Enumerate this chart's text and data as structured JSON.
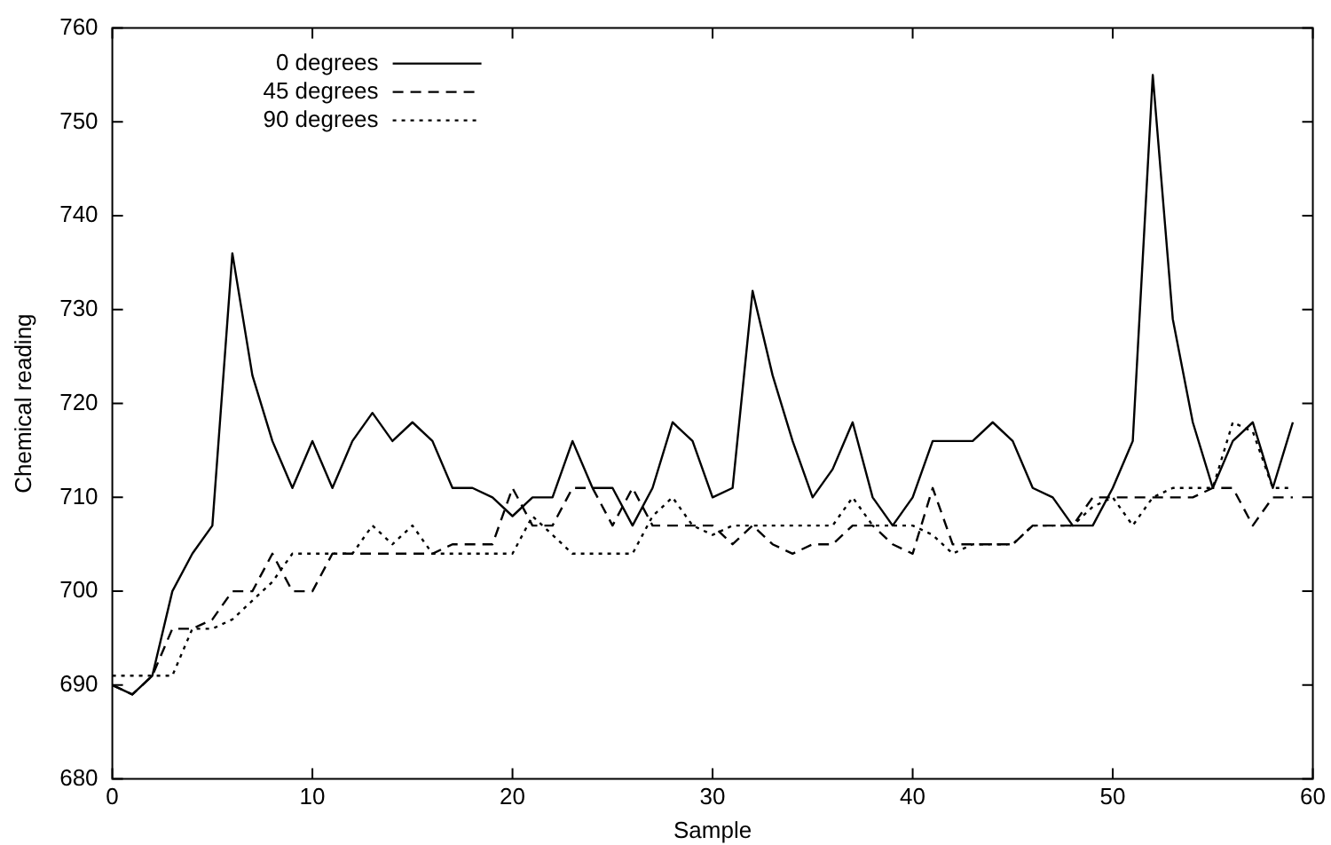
{
  "chart_data": {
    "type": "line",
    "xlabel": "Sample",
    "ylabel": "Chemical reading",
    "x": [
      0,
      1,
      2,
      3,
      4,
      5,
      6,
      7,
      8,
      9,
      10,
      11,
      12,
      13,
      14,
      15,
      16,
      17,
      18,
      19,
      20,
      21,
      22,
      23,
      24,
      25,
      26,
      27,
      28,
      29,
      30,
      31,
      32,
      33,
      34,
      35,
      36,
      37,
      38,
      39,
      40,
      41,
      42,
      43,
      44,
      45,
      46,
      47,
      48,
      49,
      50,
      51,
      52,
      53,
      54,
      55,
      56,
      57,
      58,
      59
    ],
    "series": [
      {
        "name": "0 degrees",
        "color": "#000000",
        "line_style": "solid",
        "values": [
          690,
          689,
          691,
          700,
          704,
          707,
          736,
          723,
          716,
          711,
          716,
          711,
          716,
          719,
          716,
          718,
          716,
          711,
          711,
          710,
          708,
          710,
          710,
          716,
          711,
          711,
          707,
          711,
          718,
          716,
          710,
          711,
          732,
          723,
          716,
          710,
          713,
          718,
          710,
          707,
          710,
          716,
          716,
          716,
          718,
          716,
          711,
          710,
          707,
          707,
          711,
          716,
          755,
          729,
          718,
          711,
          716,
          718,
          711,
          718
        ]
      },
      {
        "name": "45 degrees",
        "color": "#000000",
        "line_style": "dashed",
        "values": [
          690,
          689,
          691,
          696,
          696,
          697,
          700,
          700,
          704,
          700,
          700,
          704,
          704,
          704,
          704,
          704,
          704,
          705,
          705,
          705,
          711,
          707,
          707,
          711,
          711,
          707,
          711,
          707,
          707,
          707,
          707,
          705,
          707,
          705,
          704,
          705,
          705,
          707,
          707,
          705,
          704,
          711,
          705,
          705,
          705,
          705,
          707,
          707,
          707,
          710,
          710,
          710,
          710,
          710,
          710,
          711,
          711,
          707,
          710,
          710
        ]
      },
      {
        "name": "90 degrees",
        "color": "#000000",
        "line_style": "dotted",
        "values": [
          691,
          691,
          691,
          691,
          696,
          696,
          697,
          699,
          701,
          704,
          704,
          704,
          704,
          707,
          705,
          707,
          704,
          704,
          704,
          704,
          704,
          708,
          706,
          704,
          704,
          704,
          704,
          708,
          710,
          707,
          706,
          707,
          707,
          707,
          707,
          707,
          707,
          710,
          707,
          707,
          707,
          706,
          704,
          705,
          705,
          705,
          707,
          707,
          707,
          709,
          710,
          707,
          710,
          711,
          711,
          711,
          718,
          717,
          711,
          711
        ]
      }
    ],
    "xlim": [
      0,
      60
    ],
    "xticks": [
      0,
      10,
      20,
      30,
      40,
      50,
      60
    ],
    "ylim": [
      680,
      760
    ],
    "yticks": [
      680,
      690,
      700,
      710,
      720,
      730,
      740,
      750,
      760
    ],
    "grid": false,
    "legend": "top left",
    "marker": "none"
  }
}
